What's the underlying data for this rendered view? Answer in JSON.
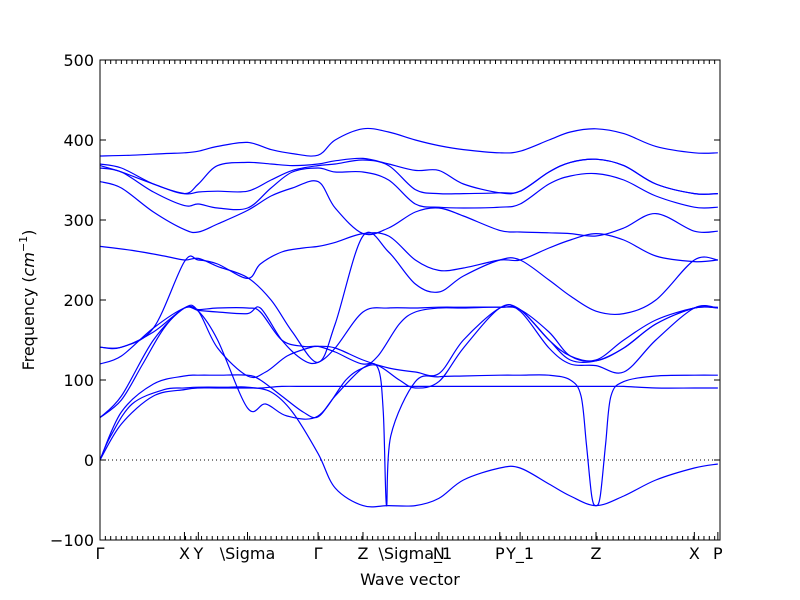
{
  "chart_data": {
    "type": "line",
    "title": "",
    "xlabel": "Wave vector",
    "ylabel_text": "Frequency (",
    "ylabel_unit": "cm",
    "ylabel_exp": "−1",
    "ylabel_close": ")",
    "ylim": [
      -100,
      500
    ],
    "yticks": [
      -100,
      0,
      100,
      200,
      300,
      400,
      500
    ],
    "ytick_labels": [
      "−100",
      "0",
      "100",
      "200",
      "300",
      "400",
      "500"
    ],
    "xlim": [
      0,
      5.8
    ],
    "high_symmetry_points": [
      {
        "label": "Γ",
        "x": 0.0
      },
      {
        "label": "X",
        "x": 0.79
      },
      {
        "label": "Y",
        "x": 0.92
      },
      {
        "label": "\\Sigma",
        "x": 1.38
      },
      {
        "label": "Γ",
        "x": 2.04
      },
      {
        "label": "Z",
        "x": 2.46
      },
      {
        "label": "\\Sigma_1",
        "x": 2.95
      },
      {
        "label": "N",
        "x": 3.17
      },
      {
        "label": "P",
        "x": 3.74
      },
      {
        "label": "Y_1",
        "x": 3.93
      },
      {
        "label": "Z",
        "x": 4.64
      },
      {
        "label": "X",
        "x": 5.56
      },
      {
        "label": "P",
        "x": 5.78
      }
    ],
    "zero_line": true,
    "grid": false,
    "legend": "none",
    "line_color": "#0000ff",
    "series": [
      {
        "x": [
          0,
          0.1,
          0.3,
          0.6,
          0.79,
          0.92,
          1.2,
          1.38,
          1.6,
          1.8,
          2.04,
          2.2,
          2.46,
          2.7,
          2.95,
          3.17,
          3.4,
          3.74,
          3.93,
          4.2,
          4.4,
          4.64,
          4.9,
          5.2,
          5.56,
          5.78
        ],
        "y": [
          0,
          30,
          70,
          88,
          90,
          91,
          91,
          91,
          85,
          60,
          8,
          -35,
          -57,
          -57,
          -57,
          -48,
          -25,
          -10,
          -10,
          -30,
          -45,
          -57,
          -45,
          -25,
          -10,
          -5
        ]
      },
      {
        "x": [
          0,
          0.2,
          0.5,
          0.79,
          0.92,
          1.1,
          1.38,
          1.5,
          1.7,
          1.9,
          2.04,
          2.2,
          2.46,
          2.6,
          2.7,
          2.75,
          2.95,
          3.17,
          3.4,
          3.74,
          3.93,
          4.2,
          4.4,
          4.5,
          4.55,
          4.64,
          4.73,
          4.78,
          4.9,
          5.2,
          5.56,
          5.78
        ],
        "y": [
          0,
          45,
          80,
          88,
          90,
          90,
          90,
          90,
          92,
          92,
          92,
          92,
          92,
          92,
          92,
          92,
          92,
          92,
          92,
          92,
          92,
          92,
          92,
          92,
          92,
          92,
          92,
          92,
          92,
          90,
          90,
          90
        ]
      },
      {
        "x": [
          0,
          0.2,
          0.5,
          0.79,
          0.92,
          1.1,
          1.38,
          1.5,
          1.7,
          1.9,
          2.04,
          2.2,
          2.46,
          2.6,
          2.65,
          2.68,
          2.72,
          2.95,
          3.17,
          3.4,
          3.74,
          3.93,
          4.2,
          4.4,
          4.5,
          4.55,
          4.6,
          4.64,
          4.68,
          4.73,
          4.78,
          4.9,
          5.2,
          5.56,
          5.78
        ],
        "y": [
          0,
          60,
          95,
          105,
          106,
          106,
          106,
          100,
          80,
          60,
          54,
          80,
          115,
          115,
          60,
          -57,
          30,
          98,
          104,
          105,
          106,
          106,
          106,
          100,
          80,
          20,
          -45,
          -57,
          -45,
          20,
          80,
          98,
          105,
          106,
          106
        ]
      },
      {
        "x": [
          0,
          0.2,
          0.4,
          0.6,
          0.79,
          0.92,
          1.1,
          1.38,
          1.55,
          1.75,
          2.04,
          2.3,
          2.46,
          2.6,
          2.8,
          2.95,
          3.17,
          3.4,
          3.74,
          3.93,
          4.2,
          4.4,
          4.64,
          4.9,
          5.2,
          5.56,
          5.78
        ],
        "y": [
          53,
          75,
          120,
          165,
          190,
          186,
          150,
          65,
          70,
          55,
          55,
          100,
          115,
          118,
          100,
          90,
          98,
          140,
          190,
          186,
          140,
          120,
          118,
          110,
          150,
          190,
          190
        ]
      },
      {
        "x": [
          0,
          0.2,
          0.5,
          0.79,
          0.92,
          1.1,
          1.38,
          1.55,
          1.75,
          1.95,
          2.04,
          2.2,
          2.46,
          2.7,
          2.95,
          3.17,
          3.4,
          3.74,
          3.93,
          4.2,
          4.4,
          4.64,
          4.9,
          5.2,
          5.56,
          5.78
        ],
        "y": [
          53,
          80,
          150,
          190,
          186,
          140,
          105,
          110,
          130,
          140,
          142,
          140,
          125,
          115,
          110,
          108,
          150,
          190,
          188,
          150,
          130,
          124,
          140,
          170,
          190,
          190
        ]
      },
      {
        "x": [
          0,
          0.2,
          0.5,
          0.79,
          0.92,
          1.1,
          1.38,
          1.5,
          1.7,
          1.9,
          2.04,
          2.2,
          2.46,
          2.7,
          2.95,
          3.17,
          3.4,
          3.74,
          3.93,
          4.2,
          4.4,
          4.64,
          4.9,
          5.2,
          5.56,
          5.78
        ],
        "y": [
          120,
          130,
          165,
          190,
          187,
          185,
          183,
          190,
          150,
          125,
          122,
          140,
          185,
          190,
          190,
          191,
          191,
          191,
          188,
          150,
          125,
          124,
          140,
          170,
          190,
          190
        ]
      },
      {
        "x": [
          0,
          0.2,
          0.5,
          0.79,
          0.92,
          1.1,
          1.38,
          1.5,
          1.7,
          1.9,
          2.04,
          2.2,
          2.46,
          2.6,
          2.8,
          2.95,
          3.17,
          3.4,
          3.74,
          3.93,
          4.2,
          4.4,
          4.64,
          4.9,
          5.2,
          5.56,
          5.78
        ],
        "y": [
          141,
          141,
          160,
          190,
          188,
          190,
          190,
          185,
          150,
          142,
          142,
          135,
          120,
          130,
          170,
          185,
          190,
          190,
          191,
          188,
          160,
          130,
          125,
          150,
          175,
          190,
          191
        ]
      },
      {
        "x": [
          0,
          0.2,
          0.5,
          0.79,
          0.92,
          1.1,
          1.38,
          1.5,
          1.7,
          1.9,
          2.04,
          2.2,
          2.46,
          2.7,
          2.95,
          3.17,
          3.4,
          3.74,
          3.93,
          4.2,
          4.4,
          4.64,
          4.9,
          5.2,
          5.56,
          5.78
        ],
        "y": [
          141,
          141,
          165,
          248,
          250,
          245,
          227,
          245,
          260,
          265,
          267,
          272,
          283,
          280,
          250,
          237,
          240,
          250,
          250,
          265,
          275,
          283,
          275,
          255,
          248,
          250
        ]
      },
      {
        "x": [
          0,
          0.3,
          0.6,
          0.79,
          0.92,
          1.1,
          1.38,
          1.6,
          1.8,
          2.04,
          2.2,
          2.46,
          2.7,
          2.95,
          3.17,
          3.4,
          3.74,
          3.93,
          4.2,
          4.4,
          4.64,
          4.9,
          5.2,
          5.56,
          5.78
        ],
        "y": [
          267,
          262,
          255,
          250,
          252,
          242,
          228,
          200,
          160,
          122,
          170,
          280,
          260,
          220,
          210,
          230,
          250,
          250,
          225,
          205,
          186,
          183,
          200,
          250,
          250
        ]
      },
      {
        "x": [
          0,
          0.2,
          0.5,
          0.79,
          0.92,
          1.1,
          1.38,
          1.6,
          1.8,
          2.04,
          2.2,
          2.46,
          2.7,
          2.95,
          3.17,
          3.4,
          3.74,
          3.93,
          4.2,
          4.4,
          4.64,
          4.9,
          5.2,
          5.56,
          5.78
        ],
        "y": [
          348,
          340,
          310,
          288,
          285,
          295,
          312,
          330,
          340,
          348,
          315,
          283,
          290,
          310,
          315,
          305,
          287,
          285,
          284,
          283,
          280,
          290,
          308,
          286,
          286
        ]
      },
      {
        "x": [
          0,
          0.2,
          0.5,
          0.79,
          0.92,
          1.1,
          1.38,
          1.6,
          1.8,
          2.04,
          2.2,
          2.46,
          2.7,
          2.95,
          3.17,
          3.4,
          3.74,
          3.93,
          4.2,
          4.4,
          4.64,
          4.9,
          5.2,
          5.56,
          5.78
        ],
        "y": [
          365,
          360,
          335,
          318,
          320,
          315,
          315,
          340,
          360,
          365,
          360,
          360,
          350,
          320,
          316,
          315,
          316,
          320,
          345,
          355,
          358,
          350,
          330,
          316,
          316
        ]
      },
      {
        "x": [
          0,
          0.2,
          0.5,
          0.79,
          0.92,
          1.1,
          1.38,
          1.6,
          1.8,
          2.04,
          2.2,
          2.46,
          2.7,
          2.95,
          3.17,
          3.4,
          3.74,
          3.93,
          4.2,
          4.4,
          4.64,
          4.9,
          5.2,
          5.56,
          5.78
        ],
        "y": [
          370,
          365,
          345,
          333,
          335,
          336,
          336,
          350,
          362,
          368,
          370,
          375,
          368,
          338,
          333,
          333,
          334,
          336,
          360,
          372,
          376,
          368,
          345,
          333,
          333
        ]
      },
      {
        "x": [
          0,
          0.2,
          0.5,
          0.79,
          0.92,
          1.1,
          1.38,
          1.6,
          1.8,
          2.04,
          2.2,
          2.46,
          2.7,
          2.95,
          3.17,
          3.4,
          3.74,
          3.93,
          4.2,
          4.4,
          4.64,
          4.9,
          5.2,
          5.56,
          5.78
        ],
        "y": [
          368,
          360,
          345,
          333,
          345,
          368,
          372,
          370,
          368,
          370,
          374,
          377,
          370,
          362,
          362,
          345,
          334,
          336,
          360,
          372,
          376,
          368,
          345,
          333,
          333
        ]
      },
      {
        "x": [
          0,
          0.3,
          0.6,
          0.79,
          0.92,
          1.1,
          1.38,
          1.6,
          1.8,
          2.04,
          2.2,
          2.46,
          2.7,
          2.95,
          3.17,
          3.4,
          3.74,
          3.93,
          4.2,
          4.4,
          4.64,
          4.9,
          5.2,
          5.56,
          5.78
        ],
        "y": [
          380,
          381,
          383,
          384,
          386,
          392,
          397,
          388,
          383,
          381,
          400,
          414,
          410,
          400,
          393,
          388,
          384,
          386,
          400,
          410,
          414,
          408,
          392,
          384,
          384
        ]
      }
    ]
  }
}
